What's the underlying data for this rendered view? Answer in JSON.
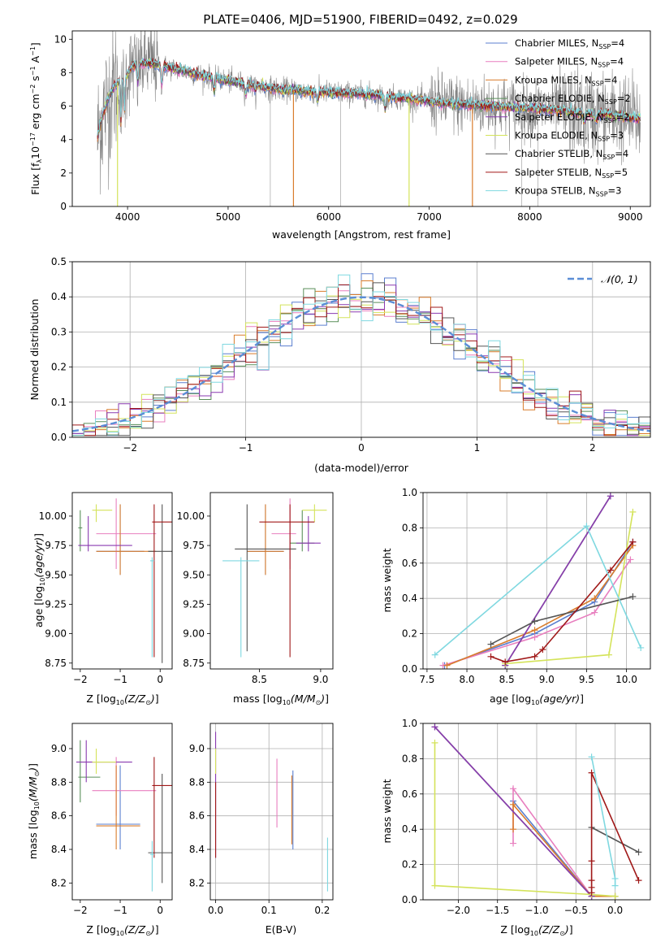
{
  "figure_title": "PLATE=0406, MJD=51900, FIBERID=0492, z=0.029",
  "colors": {
    "Chabrier MILES": "#5b7fcf",
    "Salpeter MILES": "#e87fbf",
    "Kroupa MILES": "#d97c2b",
    "Chabrier ELODIE": "#5a8f5a",
    "Salpeter ELODIE": "#8a3ab0",
    "Kroupa ELODIE": "#d4e35a",
    "Chabrier STELIB": "#555555",
    "Salpeter STELIB": "#a01818",
    "Kroupa STELIB": "#7fd8e0",
    "data": "#808080",
    "normal": "#5b8ed6"
  },
  "chart_data": [
    {
      "type": "line",
      "title": "PLATE=0406, MJD=51900, FIBERID=0492, z=0.029",
      "xlabel": "wavelength [Angstrom, rest frame]",
      "ylabel": "Flux [f_λ 10^-17 erg cm^-2 s^-1 A^-1]",
      "xlim": [
        3450,
        9200
      ],
      "ylim": [
        0,
        10.5
      ],
      "xticks": [
        4000,
        5000,
        6000,
        7000,
        8000,
        9000
      ],
      "yticks": [
        0,
        2,
        4,
        6,
        8,
        10
      ],
      "legend_position": "top-right",
      "legend": [
        {
          "label": "Chabrier MILES, N",
          "sub": "SSP",
          "suffix": "=4"
        },
        {
          "label": "Salpeter MILES, N",
          "sub": "SSP",
          "suffix": "=4"
        },
        {
          "label": "Kroupa MILES, N",
          "sub": "SSP",
          "suffix": "=4"
        },
        {
          "label": "Chabrier ELODIE, N",
          "sub": "SSP",
          "suffix": "=2"
        },
        {
          "label": "Salpeter ELODIE, N",
          "sub": "SSP",
          "suffix": "=2"
        },
        {
          "label": "Kroupa ELODIE, N",
          "sub": "SSP",
          "suffix": "=3"
        },
        {
          "label": "Chabrier STELIB, N",
          "sub": "SSP",
          "suffix": "=4"
        },
        {
          "label": "Salpeter STELIB, N",
          "sub": "SSP",
          "suffix": "=5"
        },
        {
          "label": "Kroupa STELIB, N",
          "sub": "SSP",
          "suffix": "=3"
        }
      ],
      "model_continuum": [
        [
          3700,
          4.0
        ],
        [
          3720,
          4.8
        ],
        [
          3760,
          5.6
        ],
        [
          3800,
          6.3
        ],
        [
          3850,
          7.0
        ],
        [
          3900,
          7.4
        ],
        [
          3950,
          7.6
        ],
        [
          4000,
          7.9
        ],
        [
          4050,
          8.4
        ],
        [
          4100,
          8.5
        ],
        [
          4200,
          8.6
        ],
        [
          4300,
          8.5
        ],
        [
          4400,
          8.3
        ],
        [
          4500,
          8.2
        ],
        [
          4700,
          7.9
        ],
        [
          5000,
          7.5
        ],
        [
          5300,
          7.2
        ],
        [
          5500,
          7.0
        ],
        [
          5800,
          6.9
        ],
        [
          6100,
          6.8
        ],
        [
          6400,
          6.7
        ],
        [
          6700,
          6.5
        ],
        [
          7000,
          6.3
        ],
        [
          7300,
          6.1
        ],
        [
          7600,
          6.0
        ],
        [
          7900,
          5.9
        ],
        [
          8200,
          5.8
        ],
        [
          8500,
          5.6
        ],
        [
          8700,
          5.5
        ],
        [
          8900,
          5.4
        ],
        [
          9000,
          5.3
        ]
      ],
      "dropouts": [
        {
          "x": 3900,
          "series": "Kroupa ELODIE"
        },
        {
          "x": 5650,
          "series": "Kroupa MILES"
        },
        {
          "x": 6800,
          "series": "Kroupa ELODIE"
        },
        {
          "x": 7430,
          "series": "Kroupa MILES"
        }
      ]
    },
    {
      "type": "histogram",
      "xlabel": "(data-model)/error",
      "ylabel": "Normed distribution",
      "xlim": [
        -2.5,
        2.5
      ],
      "ylim": [
        0,
        0.5
      ],
      "xticks": [
        -2,
        -1,
        0,
        1,
        2
      ],
      "yticks": [
        0.0,
        0.1,
        0.2,
        0.3,
        0.4,
        0.5
      ],
      "bin_width": 0.1,
      "grid": true,
      "legend_position": "top-right",
      "legend": [
        "N(0,1)"
      ]
    },
    {
      "type": "scatter",
      "xlabel": "Z [log10(Z/Z⊙)]",
      "ylabel": "age [log10(age/yr)]",
      "xlim": [
        -2.2,
        0.3
      ],
      "ylim": [
        8.7,
        10.2
      ],
      "xticks": [
        -2,
        -1,
        0
      ],
      "yticks": [
        8.75,
        9.0,
        9.25,
        9.5,
        9.75,
        10.0
      ],
      "points": [
        {
          "s": "Chabrier MILES",
          "x": -1.0,
          "xe": [
            -1.6,
            -0.4
          ],
          "y": 9.7,
          "ye": [
            9.5,
            10.1
          ]
        },
        {
          "s": "Salpeter MILES",
          "x": -1.1,
          "xe": [
            -1.6,
            -0.1
          ],
          "y": 9.85,
          "ye": [
            9.55,
            10.15
          ]
        },
        {
          "s": "Kroupa MILES",
          "x": -1.0,
          "xe": [
            -1.6,
            -0.1
          ],
          "y": 9.7,
          "ye": [
            9.5,
            10.1
          ]
        },
        {
          "s": "Chabrier ELODIE",
          "x": -2.0,
          "xe": [
            -2.05,
            -1.95
          ],
          "y": 9.9,
          "ye": [
            9.7,
            10.05
          ]
        },
        {
          "s": "Salpeter ELODIE",
          "x": -1.8,
          "xe": [
            -2.05,
            -0.7
          ],
          "y": 9.75,
          "ye": [
            9.7,
            10.0
          ]
        },
        {
          "s": "Kroupa ELODIE",
          "x": -1.6,
          "xe": [
            -1.7,
            -1.2
          ],
          "y": 10.05,
          "ye": [
            9.95,
            10.1
          ]
        },
        {
          "s": "Chabrier STELIB",
          "x": 0.05,
          "xe": [
            -0.3,
            0.3
          ],
          "y": 9.7,
          "ye": [
            8.75,
            10.1
          ]
        },
        {
          "s": "Salpeter STELIB",
          "x": -0.15,
          "xe": [
            -0.2,
            0.3
          ],
          "y": 9.95,
          "ye": [
            8.8,
            10.1
          ]
        },
        {
          "s": "Kroupa STELIB",
          "x": -0.2,
          "xe": [
            -0.25,
            -0.15
          ],
          "y": 9.62,
          "ye": [
            8.8,
            9.65
          ]
        }
      ]
    },
    {
      "type": "scatter",
      "xlabel": "mass [log10(M/M⊙)]",
      "ylabel": "",
      "xlim": [
        8.1,
        9.1
      ],
      "ylim": [
        8.7,
        10.2
      ],
      "xticks": [
        8.5,
        9.0
      ],
      "yticks": [
        8.75,
        9.0,
        9.25,
        9.5,
        9.75,
        10.0
      ],
      "points": [
        {
          "s": "Chabrier MILES",
          "x": 8.55,
          "xe": [
            8.4,
            8.7
          ],
          "y": 9.7,
          "ye": [
            9.5,
            10.1
          ]
        },
        {
          "s": "Salpeter MILES",
          "x": 8.75,
          "xe": [
            8.6,
            8.8
          ],
          "y": 9.85,
          "ye": [
            9.55,
            10.15
          ]
        },
        {
          "s": "Kroupa MILES",
          "x": 8.55,
          "xe": [
            8.4,
            8.7
          ],
          "y": 9.7,
          "ye": [
            9.5,
            10.1
          ]
        },
        {
          "s": "Chabrier ELODIE",
          "x": 8.85,
          "xe": [
            8.75,
            8.95
          ],
          "y": 9.77,
          "ye": [
            9.7,
            10.05
          ]
        },
        {
          "s": "Salpeter ELODIE",
          "x": 8.9,
          "xe": [
            8.8,
            9.0
          ],
          "y": 9.77,
          "ye": [
            9.7,
            10.0
          ]
        },
        {
          "s": "Kroupa ELODIE",
          "x": 8.95,
          "xe": [
            8.85,
            9.05
          ],
          "y": 10.05,
          "ye": [
            9.95,
            10.1
          ]
        },
        {
          "s": "Chabrier STELIB",
          "x": 8.4,
          "xe": [
            8.3,
            8.8
          ],
          "y": 9.72,
          "ye": [
            8.85,
            10.1
          ]
        },
        {
          "s": "Salpeter STELIB",
          "x": 8.75,
          "xe": [
            8.5,
            8.95
          ],
          "y": 9.95,
          "ye": [
            8.8,
            10.1
          ]
        },
        {
          "s": "Kroupa STELIB",
          "x": 8.35,
          "xe": [
            8.2,
            8.5
          ],
          "y": 9.62,
          "ye": [
            8.8,
            9.65
          ]
        }
      ]
    },
    {
      "type": "line",
      "xlabel": "age [log10(age/yr)]",
      "ylabel": "mass weight",
      "xlim": [
        7.45,
        10.3
      ],
      "ylim": [
        0,
        1.0
      ],
      "xticks": [
        7.5,
        8.0,
        8.5,
        9.0,
        9.5,
        10.0
      ],
      "yticks": [
        0.0,
        0.2,
        0.4,
        0.6,
        0.8,
        1.0
      ],
      "grid": true,
      "series": [
        {
          "s": "Chabrier MILES",
          "x": [
            7.72,
            8.85,
            9.6,
            10.08
          ],
          "y": [
            0.02,
            0.2,
            0.38,
            0.72
          ]
        },
        {
          "s": "Salpeter MILES",
          "x": [
            7.7,
            8.85,
            9.6,
            10.05
          ],
          "y": [
            0.02,
            0.18,
            0.32,
            0.62
          ]
        },
        {
          "s": "Kroupa MILES",
          "x": [
            7.75,
            8.85,
            9.6,
            10.08
          ],
          "y": [
            0.02,
            0.22,
            0.4,
            0.7
          ]
        },
        {
          "s": "Chabrier ELODIE",
          "x": [
            8.48,
            9.8
          ],
          "y": [
            0.02,
            0.98
          ]
        },
        {
          "s": "Salpeter ELODIE",
          "x": [
            8.48,
            9.8
          ],
          "y": [
            0.02,
            0.98
          ]
        },
        {
          "s": "Kroupa ELODIE",
          "x": [
            8.48,
            9.78,
            10.08
          ],
          "y": [
            0.03,
            0.08,
            0.89
          ]
        },
        {
          "s": "Chabrier STELIB",
          "x": [
            8.3,
            8.85,
            10.08
          ],
          "y": [
            0.14,
            0.27,
            0.41
          ]
        },
        {
          "s": "Salpeter STELIB",
          "x": [
            8.3,
            8.48,
            8.85,
            8.95,
            9.8,
            10.08
          ],
          "y": [
            0.07,
            0.04,
            0.07,
            0.11,
            0.56,
            0.72
          ]
        },
        {
          "s": "Kroupa STELIB",
          "x": [
            7.6,
            9.5,
            10.18
          ],
          "y": [
            0.08,
            0.81,
            0.12
          ]
        }
      ]
    },
    {
      "type": "scatter",
      "xlabel": "Z [log10(Z/Z⊙)]",
      "ylabel": "mass [log10(M/M⊙)]",
      "xlim": [
        -2.2,
        0.3
      ],
      "ylim": [
        8.1,
        9.15
      ],
      "xticks": [
        -2,
        -1,
        0
      ],
      "yticks": [
        8.2,
        8.4,
        8.6,
        8.8,
        9.0
      ],
      "points": [
        {
          "s": "Chabrier MILES",
          "x": -1.0,
          "xe": [
            -1.6,
            -0.5
          ],
          "y": 8.55,
          "ye": [
            8.4,
            8.9
          ]
        },
        {
          "s": "Salpeter MILES",
          "x": -1.1,
          "xe": [
            -1.7,
            -0.1
          ],
          "y": 8.75,
          "ye": [
            8.6,
            8.95
          ]
        },
        {
          "s": "Kroupa MILES",
          "x": -1.1,
          "xe": [
            -1.6,
            -0.5
          ],
          "y": 8.54,
          "ye": [
            8.4,
            8.9
          ]
        },
        {
          "s": "Chabrier ELODIE",
          "x": -2.0,
          "xe": [
            -2.05,
            -1.5
          ],
          "y": 8.83,
          "ye": [
            8.68,
            9.05
          ]
        },
        {
          "s": "Salpeter ELODIE",
          "x": -1.85,
          "xe": [
            -2.1,
            -0.7
          ],
          "y": 8.92,
          "ye": [
            8.8,
            9.05
          ]
        },
        {
          "s": "Kroupa ELODIE",
          "x": -1.6,
          "xe": [
            -1.7,
            -1.1
          ],
          "y": 8.92,
          "ye": [
            8.85,
            9.0
          ]
        },
        {
          "s": "Chabrier STELIB",
          "x": 0.05,
          "xe": [
            -0.3,
            0.3
          ],
          "y": 8.38,
          "ye": [
            8.2,
            8.85
          ]
        },
        {
          "s": "Salpeter STELIB",
          "x": -0.15,
          "xe": [
            -0.2,
            0.3
          ],
          "y": 8.78,
          "ye": [
            8.35,
            8.95
          ]
        },
        {
          "s": "Kroupa STELIB",
          "x": -0.2,
          "xe": [
            -0.25,
            -0.15
          ],
          "y": 8.37,
          "ye": [
            8.15,
            8.45
          ]
        }
      ]
    },
    {
      "type": "scatter",
      "xlabel": "E(B-V)",
      "ylabel": "",
      "xlim": [
        -0.01,
        0.22
      ],
      "ylim": [
        8.1,
        9.15
      ],
      "xticks": [
        0.0,
        0.1,
        0.2
      ],
      "yticks": [
        8.2,
        8.4,
        8.6,
        8.8,
        9.0
      ],
      "grid": true,
      "points": [
        {
          "s": "Chabrier MILES",
          "x": 0.145,
          "ye": [
            8.4,
            8.87
          ]
        },
        {
          "s": "Salpeter MILES",
          "x": 0.115,
          "ye": [
            8.53,
            8.94
          ]
        },
        {
          "s": "Kroupa MILES",
          "x": 0.143,
          "ye": [
            8.43,
            8.84
          ]
        },
        {
          "s": "Salpeter ELODIE",
          "x": 0.0,
          "ye": [
            8.35,
            9.1
          ]
        },
        {
          "s": "Kroupa ELODIE",
          "x": 0.0,
          "ye": [
            8.85,
            9.0
          ]
        },
        {
          "s": "Salpeter STELIB",
          "x": 0.0,
          "ye": [
            8.35,
            8.8
          ]
        },
        {
          "s": "Kroupa STELIB",
          "x": 0.21,
          "ye": [
            8.15,
            8.47
          ]
        }
      ]
    },
    {
      "type": "line",
      "xlabel": "Z [log10(Z/Z⊙)]",
      "ylabel": "mass weight",
      "xlim": [
        -2.45,
        0.45
      ],
      "ylim": [
        0,
        1.0
      ],
      "xticks": [
        -2.0,
        -1.5,
        -1.0,
        -0.5,
        0.0
      ],
      "yticks": [
        0.0,
        0.2,
        0.4,
        0.6,
        0.8,
        1.0
      ],
      "grid": true,
      "series": [
        {
          "s": "Chabrier MILES",
          "x": [
            -1.3,
            -0.3,
            0.0
          ],
          "y": [
            0.56,
            0.02,
            0.02
          ]
        },
        {
          "s": "Salpeter MILES",
          "x": [
            -1.3,
            -1.3,
            -0.3
          ],
          "y": [
            0.32,
            0.63,
            0.02
          ]
        },
        {
          "s": "Kroupa MILES",
          "x": [
            -1.3,
            -1.3,
            -0.3,
            0.0
          ],
          "y": [
            0.4,
            0.54,
            0.02,
            0.02
          ]
        },
        {
          "s": "Chabrier ELODIE",
          "x": [
            -2.3,
            -0.3
          ],
          "y": [
            0.98,
            0.02
          ]
        },
        {
          "s": "Salpeter ELODIE",
          "x": [
            -2.3,
            -0.3
          ],
          "y": [
            0.98,
            0.02
          ]
        },
        {
          "s": "Kroupa ELODIE",
          "x": [
            -2.3,
            -2.3,
            -0.3,
            0.0
          ],
          "y": [
            0.89,
            0.08,
            0.03,
            0.02
          ]
        },
        {
          "s": "Chabrier STELIB",
          "x": [
            -0.3,
            0.3
          ],
          "y": [
            0.41,
            0.27
          ]
        },
        {
          "s": "Salpeter STELIB",
          "x": [
            -0.3,
            -0.3,
            -0.3,
            -0.3,
            -0.3,
            0.3
          ],
          "y": [
            0.04,
            0.07,
            0.11,
            0.22,
            0.72,
            0.11
          ]
        },
        {
          "s": "Kroupa STELIB",
          "x": [
            -0.3,
            0.0,
            0.0
          ],
          "y": [
            0.81,
            0.12,
            0.08
          ]
        }
      ]
    }
  ]
}
